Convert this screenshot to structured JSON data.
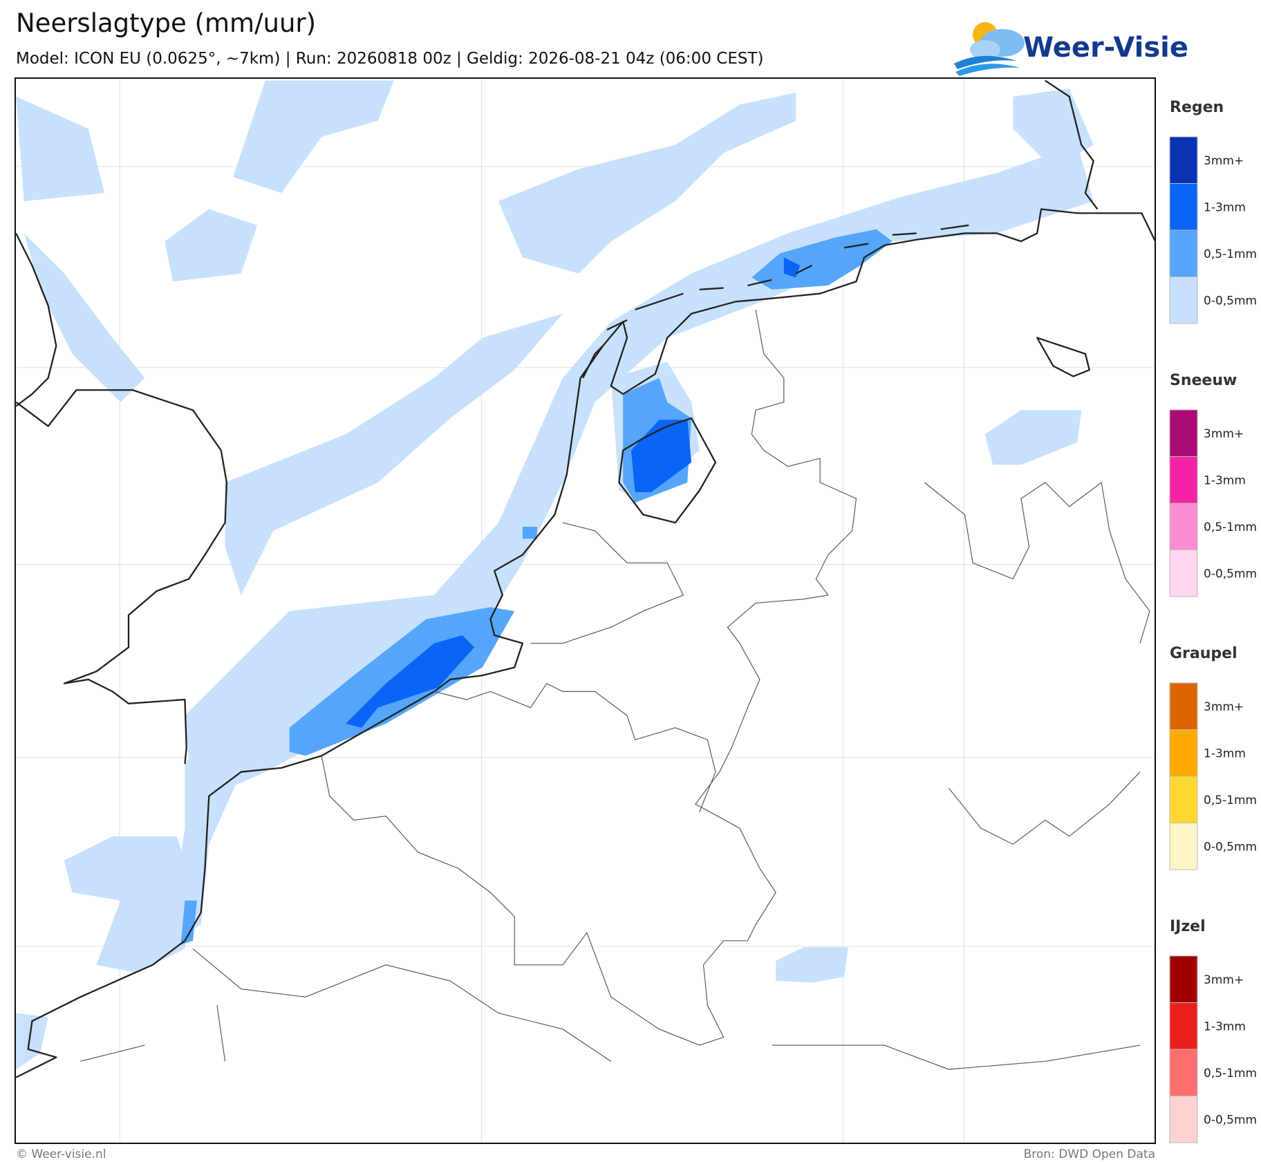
{
  "header": {
    "title": "Neerslagtype (mm/uur)",
    "subtitle": "Model: ICON EU (0.0625°, ~7km)  |  Run: 20260818 00z  |  Geldig: 2026-08-21 04z (06:00 CEST)"
  },
  "logo": {
    "text": "Weer-Visie"
  },
  "legend": {
    "groups": [
      {
        "title": "Regen",
        "items": [
          {
            "label": "3mm+",
            "color": "#0a32b4"
          },
          {
            "label": "1-3mm",
            "color": "#0a64f5"
          },
          {
            "label": "0,5-1mm",
            "color": "#55a5fa"
          },
          {
            "label": "0-0,5mm",
            "color": "#c8e1fc"
          }
        ]
      },
      {
        "title": "Sneeuw",
        "items": [
          {
            "label": "3mm+",
            "color": "#aa0a73"
          },
          {
            "label": "1-3mm",
            "color": "#f522a5"
          },
          {
            "label": "0,5-1mm",
            "color": "#fa8cd2"
          },
          {
            "label": "0-0,5mm",
            "color": "#ffd7ee"
          }
        ]
      },
      {
        "title": "Graupel",
        "items": [
          {
            "label": "3mm+",
            "color": "#dc6400"
          },
          {
            "label": "1-3mm",
            "color": "#ffaa00"
          },
          {
            "label": "0,5-1mm",
            "color": "#ffd732"
          },
          {
            "label": "0-0,5mm",
            "color": "#fff5c8"
          }
        ]
      },
      {
        "title": "IJzel",
        "items": [
          {
            "label": "3mm+",
            "color": "#a00000"
          },
          {
            "label": "1-3mm",
            "color": "#eb1e1e"
          },
          {
            "label": "0,5-1mm",
            "color": "#ff6e6e"
          },
          {
            "label": "0-0,5mm",
            "color": "#ffd2d2"
          }
        ]
      }
    ]
  },
  "footer": {
    "left": "© Weer-visie.nl",
    "right": "Bron: DWD Open Data"
  }
}
